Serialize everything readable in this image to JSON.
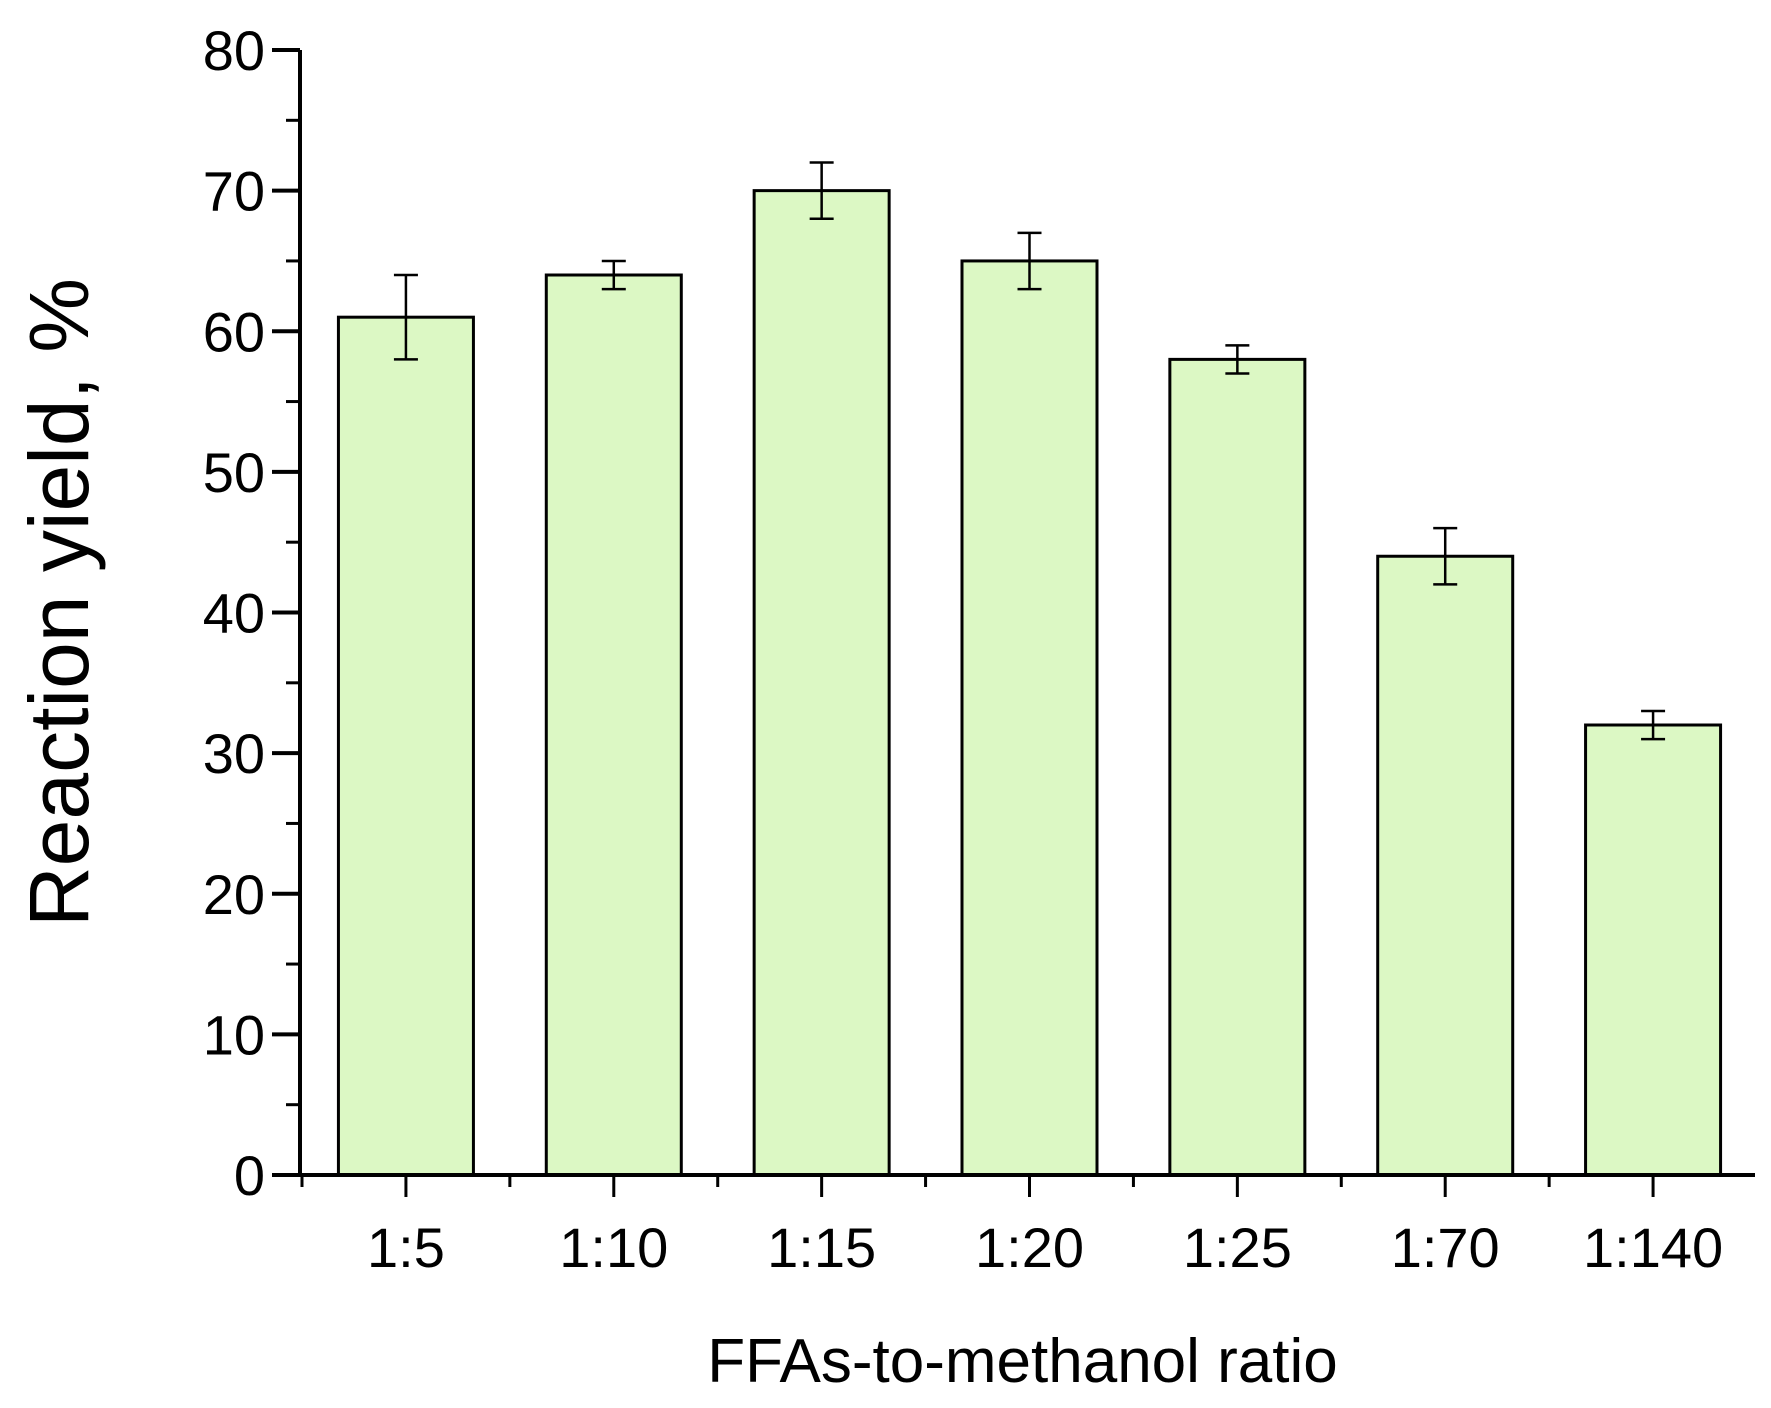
{
  "chart_data": {
    "type": "bar",
    "categories": [
      "1:5",
      "1:10",
      "1:15",
      "1:20",
      "1:25",
      "1:70",
      "1:140"
    ],
    "values": [
      61,
      64,
      70,
      65,
      58,
      44,
      32
    ],
    "errors": [
      3,
      1,
      2,
      2,
      1,
      2,
      1
    ],
    "xlabel": "FFAs-to-methanol ratio",
    "ylabel": "Reaction yield, %",
    "ylim": [
      0,
      80
    ],
    "yticks": [
      0,
      10,
      20,
      30,
      40,
      50,
      60,
      70,
      80
    ],
    "grid": false,
    "legend": "none"
  },
  "colors": {
    "bar_fill": "#dcf8c4",
    "bar_stroke": "#000000",
    "axis": "#000000"
  }
}
